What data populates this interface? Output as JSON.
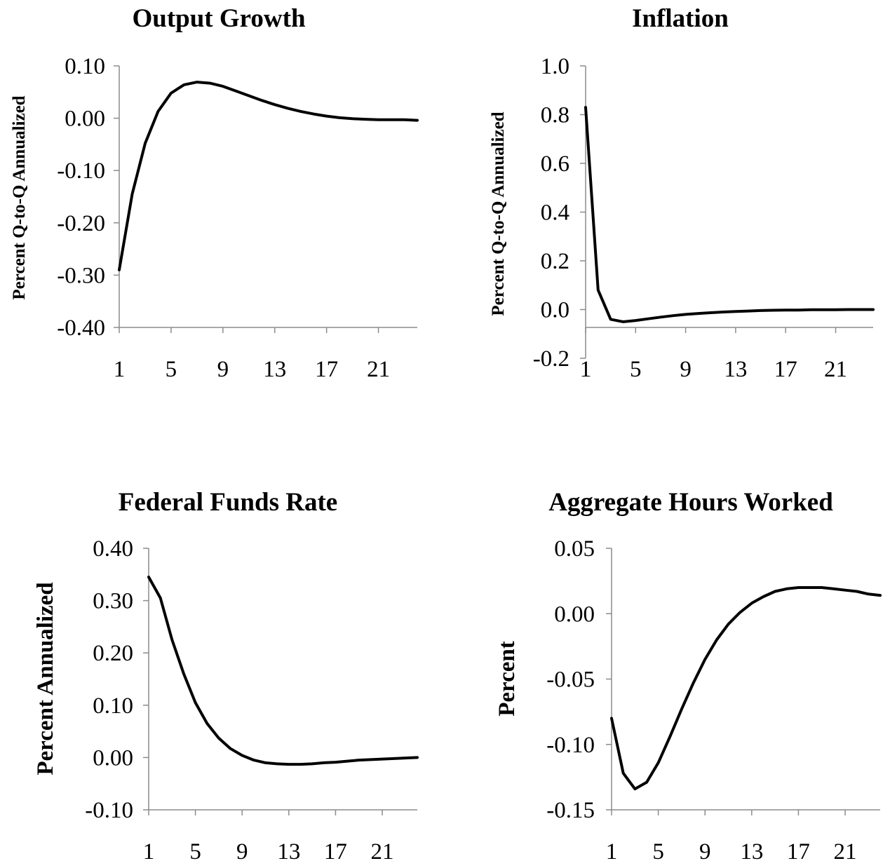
{
  "chart_data": [
    {
      "type": "line",
      "title": "Output Growth",
      "xlabel": "",
      "ylabel": "Percent Q-to-Q Annualized",
      "ylim": [
        -0.4,
        0.1
      ],
      "yticks": [
        "0.10",
        "0.00",
        "-0.10",
        "-0.20",
        "-0.30",
        "-0.40"
      ],
      "xticks": [
        "1",
        "5",
        "9",
        "13",
        "17",
        "21"
      ],
      "grid": false,
      "x": [
        1,
        2,
        3,
        4,
        5,
        6,
        7,
        8,
        9,
        10,
        11,
        12,
        13,
        14,
        15,
        16,
        17,
        18,
        19,
        20,
        21,
        22,
        23,
        24
      ],
      "series": [
        {
          "values": [
            -0.29,
            -0.145,
            -0.048,
            0.013,
            0.048,
            0.064,
            0.069,
            0.067,
            0.061,
            0.052,
            0.043,
            0.034,
            0.026,
            0.019,
            0.013,
            0.008,
            0.004,
            0.001,
            -0.001,
            -0.002,
            -0.003,
            -0.003,
            -0.003,
            -0.004
          ]
        }
      ]
    },
    {
      "type": "line",
      "title": "Inflation",
      "xlabel": "",
      "ylabel": "Percent Q-to-Q Annualized",
      "ylim": [
        -0.2,
        1.0
      ],
      "yticks": [
        "1.0",
        "0.8",
        "0.6",
        "0.4",
        "0.2",
        "0.0",
        "-0.2"
      ],
      "xticks": [
        "1",
        "5",
        "9",
        "13",
        "17",
        "21"
      ],
      "grid": false,
      "x": [
        1,
        2,
        3,
        4,
        5,
        6,
        7,
        8,
        9,
        10,
        11,
        12,
        13,
        14,
        15,
        16,
        17,
        18,
        19,
        20,
        21,
        22,
        23,
        24
      ],
      "series": [
        {
          "values": [
            0.83,
            0.08,
            -0.04,
            -0.05,
            -0.045,
            -0.038,
            -0.031,
            -0.025,
            -0.02,
            -0.016,
            -0.013,
            -0.01,
            -0.008,
            -0.006,
            -0.004,
            -0.003,
            -0.002,
            -0.002,
            -0.001,
            -0.001,
            -0.001,
            0.0,
            0.0,
            0.0
          ]
        }
      ]
    },
    {
      "type": "line",
      "title": "Federal Funds Rate",
      "xlabel": "",
      "ylabel": "Percent Annualized",
      "ylim": [
        -0.1,
        0.4
      ],
      "yticks": [
        "0.40",
        "0.30",
        "0.20",
        "0.10",
        "0.00",
        "-0.10"
      ],
      "xticks": [
        "1",
        "5",
        "9",
        "13",
        "17",
        "21"
      ],
      "grid": false,
      "x": [
        1,
        2,
        3,
        4,
        5,
        6,
        7,
        8,
        9,
        10,
        11,
        12,
        13,
        14,
        15,
        16,
        17,
        18,
        19,
        20,
        21,
        22,
        23,
        24
      ],
      "series": [
        {
          "values": [
            0.345,
            0.305,
            0.225,
            0.16,
            0.105,
            0.065,
            0.037,
            0.017,
            0.004,
            -0.005,
            -0.01,
            -0.012,
            -0.013,
            -0.013,
            -0.012,
            -0.01,
            -0.009,
            -0.007,
            -0.005,
            -0.004,
            -0.003,
            -0.002,
            -0.001,
            0.0
          ]
        }
      ]
    },
    {
      "type": "line",
      "title": "Aggregate Hours Worked",
      "xlabel": "",
      "ylabel": "Percent",
      "ylim": [
        -0.15,
        0.05
      ],
      "yticks": [
        "0.05",
        "0.00",
        "-0.05",
        "-0.10",
        "-0.15"
      ],
      "xticks": [
        "1",
        "5",
        "9",
        "13",
        "17",
        "21"
      ],
      "grid": false,
      "x": [
        1,
        2,
        3,
        4,
        5,
        6,
        7,
        8,
        9,
        10,
        11,
        12,
        13,
        14,
        15,
        16,
        17,
        18,
        19,
        20,
        21,
        22,
        23,
        24
      ],
      "series": [
        {
          "values": [
            -0.08,
            -0.122,
            -0.134,
            -0.129,
            -0.114,
            -0.094,
            -0.073,
            -0.053,
            -0.035,
            -0.02,
            -0.008,
            0.001,
            0.008,
            0.013,
            0.017,
            0.019,
            0.02,
            0.02,
            0.02,
            0.019,
            0.018,
            0.017,
            0.015,
            0.014
          ]
        }
      ]
    }
  ]
}
